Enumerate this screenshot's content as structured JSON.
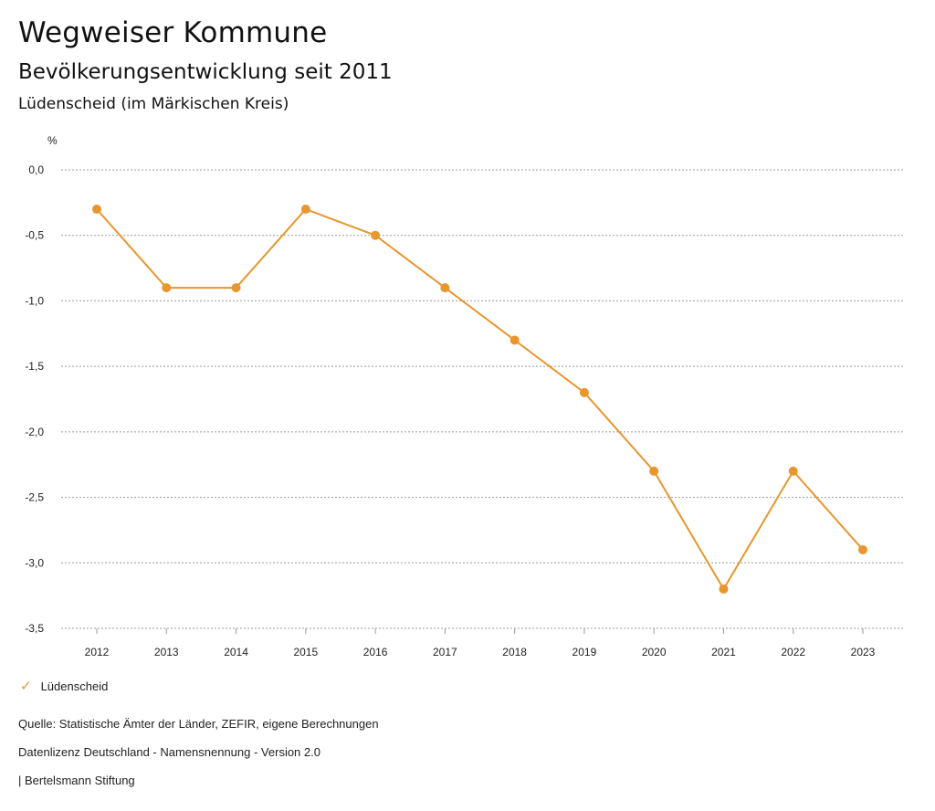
{
  "header": {
    "title": "Wegweiser Kommune",
    "subtitle": "Bevölkerungsentwicklung seit 2011",
    "region": "Lüdenscheid (im Märkischen Kreis)"
  },
  "chart_data": {
    "type": "line",
    "ylabel": "%",
    "ylim": [
      -3.5,
      0
    ],
    "yticks": [
      0,
      -0.5,
      -1,
      -1.5,
      -2,
      -2.5,
      -3,
      -3.5
    ],
    "ytick_labels": [
      "0,0",
      "-0,5",
      "-1,0",
      "-1,5",
      "-2,0",
      "-2,5",
      "-3,0",
      "-3,5"
    ],
    "grid": true,
    "categories": [
      "2012",
      "2013",
      "2014",
      "2015",
      "2016",
      "2017",
      "2018",
      "2019",
      "2020",
      "2021",
      "2022",
      "2023"
    ],
    "series": [
      {
        "name": "Lüdenscheid",
        "color": "#e8962e",
        "values": [
          -0.3,
          -0.9,
          -0.9,
          -0.3,
          -0.5,
          -0.9,
          -1.3,
          -1.7,
          -2.3,
          -3.2,
          -2.3,
          -2.9
        ]
      }
    ],
    "legend": "bottom-left"
  },
  "legend": {
    "icon": "check-icon",
    "label": "Lüdenscheid"
  },
  "footer": {
    "source": "Quelle: Statistische Ämter der Länder, ZEFIR, eigene Berechnungen",
    "license": "Datenlizenz Deutschland - Namensnennung - Version 2.0",
    "publisher": "| Bertelsmann Stiftung"
  }
}
